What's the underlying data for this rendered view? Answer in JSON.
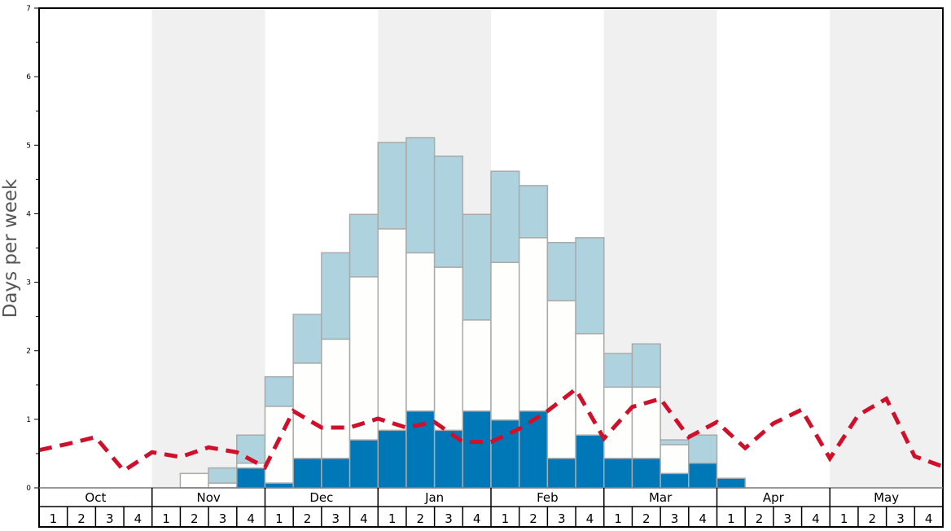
{
  "chart_data": {
    "type": "bar",
    "stacked": true,
    "title": "",
    "ylabel": "Days per week",
    "xlabel": "",
    "ylim": [
      0,
      7
    ],
    "y_ticks": [
      0,
      1,
      2,
      3,
      4,
      5,
      6,
      7
    ],
    "months": [
      "Oct",
      "Nov",
      "Dec",
      "Jan",
      "Feb",
      "Mar",
      "Apr",
      "May"
    ],
    "weeks_per_month": [
      "1",
      "2",
      "3",
      "4"
    ],
    "shaded_months": [
      "Nov",
      "Jan",
      "Mar",
      "May"
    ],
    "colors": {
      "dark": "#0077b6",
      "mid": "#fefefc",
      "light": "#aed3df",
      "line": "#d0102a",
      "shade": "#f0f0f0",
      "border": "#aaaaaa"
    },
    "bar_levels_cumulative": {
      "dark": [
        0,
        0,
        0,
        0,
        0,
        0,
        0,
        0.29,
        0.07,
        0.43,
        0.43,
        0.7,
        0.84,
        1.12,
        0.84,
        1.12,
        0.99,
        1.12,
        0.43,
        0.77,
        0.43,
        0.43,
        0.21,
        0.36,
        0.14,
        0,
        0,
        0,
        0,
        0,
        0,
        0
      ],
      "mid": [
        0,
        0,
        0,
        0,
        0,
        0.21,
        0.07,
        0.36,
        1.19,
        1.82,
        2.17,
        3.08,
        3.78,
        3.43,
        3.22,
        2.45,
        3.29,
        3.65,
        2.73,
        2.25,
        1.47,
        1.47,
        0.63,
        0.36,
        0.14,
        0,
        0,
        0,
        0,
        0,
        0,
        0
      ],
      "light": [
        0,
        0,
        0,
        0,
        0,
        0.21,
        0.29,
        0.77,
        1.62,
        2.53,
        3.43,
        3.99,
        5.04,
        5.11,
        4.84,
        3.99,
        4.62,
        4.41,
        3.58,
        3.65,
        1.96,
        2.1,
        0.7,
        0.77,
        0.14,
        0,
        0,
        0,
        0,
        0,
        0,
        0
      ]
    },
    "line_series_at_week_boundaries": [
      0.55,
      0.64,
      0.74,
      0.25,
      0.52,
      0.45,
      0.59,
      0.52,
      0.3,
      1.12,
      0.88,
      0.88,
      1.01,
      0.88,
      0.96,
      0.67,
      0.67,
      0.86,
      1.12,
      1.44,
      0.72,
      1.18,
      1.3,
      0.74,
      0.96,
      0.58,
      0.94,
      1.14,
      0.43,
      1.06,
      1.3,
      0.46,
      0.31
    ]
  }
}
